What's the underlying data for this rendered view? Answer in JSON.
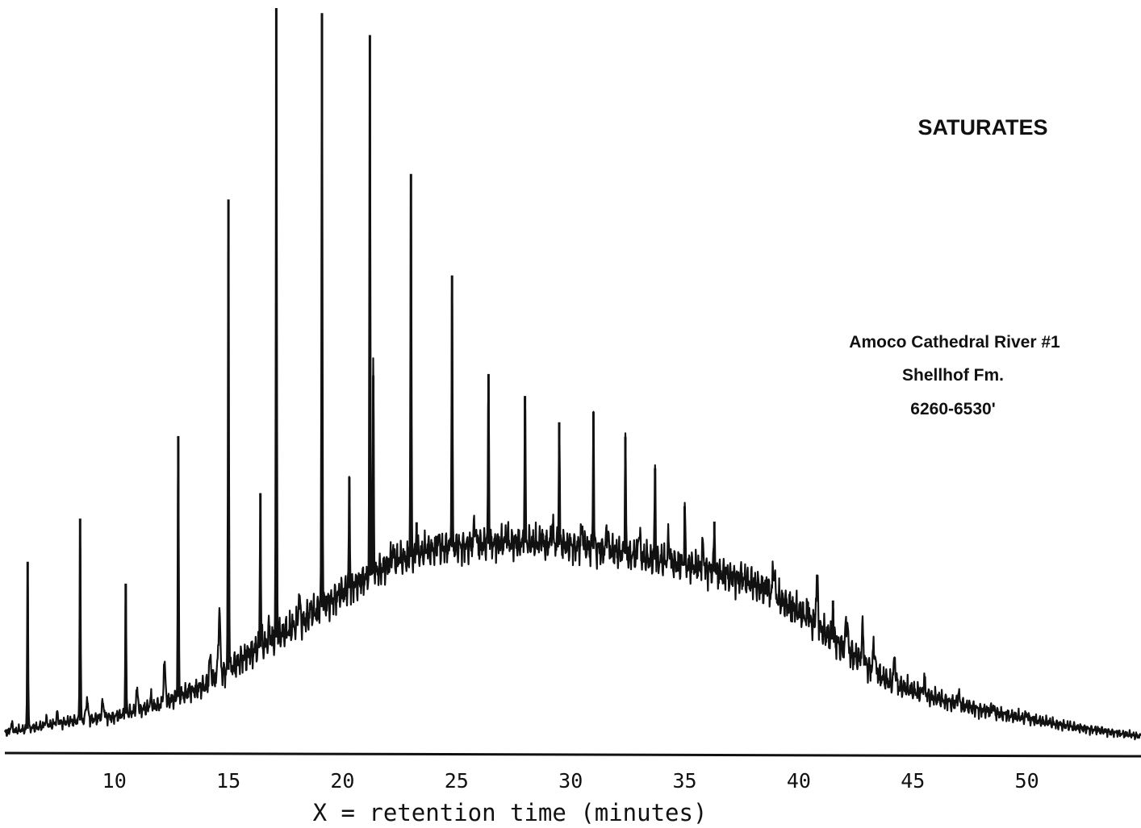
{
  "chart_data": {
    "type": "line",
    "chart_kind": "gas chromatogram",
    "title": "SATURATES",
    "annotation_lines": [
      "Amoco Cathedral River #1",
      "Shellhof Fm.",
      "6260-6530'"
    ],
    "xlabel": "X = retention time (minutes)",
    "ylabel": "",
    "xlim": [
      5.2,
      55
    ],
    "ylim": [
      0,
      100
    ],
    "x_ticks": [
      10,
      15,
      20,
      25,
      30,
      35,
      40,
      45,
      50
    ],
    "x_tick_labels": [
      "10",
      "15",
      "20",
      "25",
      "30",
      "35",
      "40",
      "45",
      "50"
    ],
    "grid": false,
    "legend": "none",
    "baseline_envelope": {
      "x": [
        5.2,
        8,
        10,
        12,
        14,
        15,
        16,
        18,
        20,
        22,
        24,
        26,
        28,
        30,
        32,
        34,
        36,
        38,
        40,
        41,
        42,
        43,
        44,
        46,
        48,
        50,
        52,
        55
      ],
      "y": [
        0.8,
        2.3,
        3.0,
        4.6,
        7.3,
        9.4,
        11.8,
        15.5,
        20.0,
        23.8,
        25.9,
        26.6,
        26.8,
        26.4,
        25.5,
        24.3,
        23.1,
        21.3,
        17.4,
        14.8,
        12.3,
        9.9,
        7.6,
        5.5,
        3.9,
        2.7,
        1.6,
        0.3
      ]
    },
    "major_peaks": {
      "x": [
        6.2,
        8.5,
        10.5,
        12.8,
        15.0,
        16.4,
        17.1,
        19.1,
        20.3,
        21.2,
        21.35,
        23.0,
        23.25,
        24.8,
        26.4,
        28.0,
        29.5,
        31.0,
        32.4,
        33.7,
        35.0,
        36.3,
        37.5,
        38.6,
        39.7,
        40.4,
        41.5
      ],
      "y": [
        24.2,
        30.1,
        21.2,
        41.4,
        73.8,
        33.6,
        100.0,
        99.3,
        35.8,
        96.3,
        49.7,
        77.3,
        29.6,
        63.4,
        49.9,
        46.9,
        43.3,
        44.7,
        41.3,
        37.0,
        31.8,
        29.7,
        22.7,
        21.8,
        15.9,
        18.7,
        18.9
      ]
    },
    "minor_peaks": {
      "x": [
        5.5,
        7.0,
        7.5,
        8.8,
        9.5,
        11.0,
        11.6,
        12.2,
        13.3,
        14.2,
        14.6,
        15.9,
        16.8,
        18.1,
        18.4,
        18.6,
        19.8,
        20.6,
        20.8,
        22.2,
        22.5,
        23.7,
        24.2,
        25.8,
        27.2,
        28.7,
        29.2,
        30.5,
        31.6,
        33.0,
        34.3,
        35.8,
        38.9,
        40.8,
        42.1,
        42.8,
        43.3,
        44.2,
        45.5,
        47.0,
        48.5,
        50.0
      ],
      "y": [
        2.0,
        2.6,
        3.3,
        5.4,
        5.0,
        6.5,
        5.5,
        10.1,
        6.8,
        11.0,
        17.2,
        11.5,
        15.0,
        19.1,
        16.0,
        17.6,
        19.5,
        17.3,
        21.2,
        25.7,
        25.1,
        26.3,
        27.3,
        29.3,
        28.1,
        27.7,
        29.0,
        28.6,
        28.7,
        28.3,
        27.0,
        26.2,
        23.5,
        21.7,
        16.8,
        14.8,
        12.8,
        11.0,
        7.9,
        6.2,
        4.4,
        3.4
      ]
    },
    "colors": {
      "trace": "#111111",
      "background": "#ffffff"
    }
  }
}
